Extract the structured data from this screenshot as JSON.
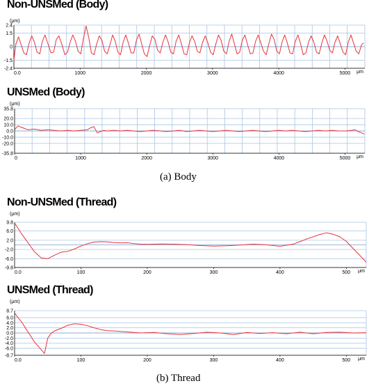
{
  "figure": {
    "caption_a": "(a) Body",
    "caption_b": "(b) Thread"
  },
  "chart_data": [
    {
      "type": "line",
      "title": "Non-UNSMed (Body)",
      "yunit": "(μm)",
      "xunit": "μm",
      "xlim": [
        0,
        5300
      ],
      "ylim": [
        -2.4,
        2.4
      ],
      "yticks": [
        "2.4",
        "1.5",
        "0",
        "-1.5",
        "-2.4"
      ],
      "ytick_values": [
        2.4,
        1.5,
        0,
        -1.5,
        -2.4
      ],
      "xticks": [
        "0.0",
        "1000",
        "2000",
        "3000",
        "4000",
        "5000"
      ],
      "xtick_values": [
        0,
        1000,
        2000,
        3000,
        4000,
        5000
      ],
      "vgrid_count": 20,
      "line_color": "#e8323a",
      "grid_color": "#a9c4e3",
      "series": [
        {
          "x": [
            0,
            30,
            70,
            110,
            150,
            190,
            230,
            270,
            310,
            350,
            390,
            430,
            470,
            520,
            560,
            600,
            640,
            680,
            730,
            770,
            810,
            850,
            890,
            930,
            970,
            1010,
            1050,
            1090,
            1130,
            1170,
            1210,
            1250,
            1290,
            1330,
            1370,
            1410,
            1450,
            1490,
            1530,
            1570,
            1610,
            1650,
            1690,
            1730,
            1770,
            1810,
            1850,
            1890,
            1930,
            1970,
            2010,
            2050,
            2090,
            2130,
            2170,
            2210,
            2250,
            2290,
            2330,
            2370,
            2410,
            2450,
            2490,
            2530,
            2570,
            2610,
            2650,
            2690,
            2730,
            2770,
            2810,
            2850,
            2890,
            2930,
            2970,
            3010,
            3050,
            3090,
            3130,
            3170,
            3210,
            3250,
            3290,
            3330,
            3370,
            3410,
            3450,
            3490,
            3530,
            3570,
            3610,
            3650,
            3690,
            3730,
            3770,
            3810,
            3850,
            3890,
            3930,
            3970,
            4010,
            4050,
            4090,
            4130,
            4170,
            4210,
            4250,
            4290,
            4330,
            4370,
            4410,
            4450,
            4490,
            4530,
            4570,
            4610,
            4650,
            4690,
            4730,
            4770,
            4810,
            4850,
            4890,
            4930,
            4970,
            5010,
            5050,
            5090,
            5130,
            5170,
            5210,
            5250,
            5280
          ],
          "y": [
            -1.5,
            0.3,
            1.1,
            0.2,
            -0.7,
            -0.9,
            0.4,
            1.2,
            0.5,
            -0.6,
            -0.8,
            0.6,
            1.3,
            0.2,
            -0.7,
            -0.6,
            0.8,
            1.2,
            0.1,
            -0.9,
            -0.6,
            0.5,
            1.3,
            0.6,
            -0.5,
            -0.8,
            0.9,
            2.3,
            1.0,
            -0.7,
            -0.9,
            0.3,
            1.2,
            0.7,
            -0.5,
            -0.8,
            0.2,
            1.3,
            0.6,
            -0.6,
            -0.9,
            0.5,
            1.3,
            0.4,
            -0.7,
            -0.7,
            0.7,
            1.4,
            0.3,
            -0.8,
            -1.1,
            0.1,
            1.2,
            0.8,
            -0.4,
            -0.7,
            0.5,
            1.3,
            0.5,
            -0.6,
            -0.8,
            0.6,
            1.3,
            0.3,
            -0.8,
            -0.9,
            0.4,
            1.2,
            0.6,
            -0.5,
            -0.7,
            0.5,
            1.2,
            0.4,
            -0.6,
            -0.9,
            0.3,
            1.3,
            0.7,
            -0.5,
            -0.8,
            0.6,
            1.4,
            0.3,
            -0.8,
            -0.6,
            0.7,
            1.3,
            0.2,
            -0.8,
            -0.7,
            0.6,
            1.3,
            0.4,
            -0.5,
            -0.9,
            0.3,
            1.4,
            0.8,
            -0.5,
            -0.8,
            0.5,
            1.3,
            0.4,
            -0.7,
            -0.8,
            0.6,
            1.3,
            0.3,
            -0.9,
            -0.7,
            0.5,
            1.2,
            0.5,
            -0.6,
            -0.8,
            0.4,
            1.3,
            0.6,
            -0.4,
            -0.7,
            0.5,
            1.2,
            0.3,
            -0.6,
            -0.9,
            0.5,
            1.3,
            0.4,
            -0.5,
            -0.8,
            0.2,
            0.4
          ]
        }
      ]
    },
    {
      "type": "line",
      "title": "UNSMed (Body)",
      "yunit": "(μm)",
      "xunit": "μm",
      "xlim": [
        0,
        5300
      ],
      "ylim": [
        -35.8,
        35.8
      ],
      "yticks": [
        "35.8",
        "20.0",
        "10.0",
        "0.0",
        "-10.0",
        "-20.0",
        "-35.8"
      ],
      "ytick_values": [
        35.8,
        20,
        10,
        0,
        -10,
        -20,
        -35.8
      ],
      "xticks": [
        "0",
        "1000",
        "2000",
        "3000",
        "4000",
        "5000"
      ],
      "xtick_values": [
        0,
        1000,
        2000,
        3000,
        4000,
        5000
      ],
      "vgrid_count": 20,
      "line_color": "#e8323a",
      "grid_color": "#a9c4e3",
      "series": [
        {
          "x": [
            0,
            50,
            100,
            150,
            200,
            300,
            400,
            500,
            600,
            700,
            800,
            900,
            1000,
            1100,
            1150,
            1200,
            1250,
            1300,
            1350,
            1400,
            1500,
            1600,
            1700,
            1800,
            1900,
            2000,
            2100,
            2200,
            2300,
            2400,
            2500,
            2600,
            2700,
            2800,
            2900,
            3000,
            3100,
            3200,
            3300,
            3400,
            3500,
            3600,
            3700,
            3800,
            3900,
            4000,
            4100,
            4200,
            4300,
            4400,
            4500,
            4600,
            4700,
            4800,
            4900,
            5000,
            5100,
            5150,
            5200,
            5250,
            5290
          ],
          "y": [
            2,
            8,
            6,
            4,
            2,
            3,
            1,
            2,
            1,
            0,
            1,
            0,
            1,
            2,
            5,
            7,
            -3,
            -1,
            1,
            0,
            1,
            0,
            1,
            0,
            -1,
            0,
            1,
            0,
            -1,
            0,
            1,
            -1,
            0,
            1,
            0,
            -1,
            0,
            1,
            0,
            -1,
            0,
            1,
            0,
            -1,
            0,
            1,
            0,
            1,
            0,
            -1,
            0,
            1,
            0,
            1,
            0,
            0,
            1,
            2,
            -1,
            -3,
            -5
          ]
        }
      ]
    },
    {
      "type": "line",
      "title": "Non-UNSMed (Thread)",
      "yunit": "(μm)",
      "xunit": "μm",
      "xlim": [
        0,
        530
      ],
      "ylim": [
        -9.8,
        9.8
      ],
      "yticks": [
        "9.8",
        "6.0",
        "2.0",
        "-2.0",
        "-6.0",
        "-9.8"
      ],
      "ytick_values": [
        9.8,
        6,
        2,
        -2,
        -6,
        -9.8
      ],
      "xticks": [
        "0.0",
        "100",
        "200",
        "300",
        "400",
        "500"
      ],
      "xtick_values": [
        0,
        100,
        200,
        300,
        400,
        500
      ],
      "vgrid_count": 0,
      "line_color": "#e8323a",
      "grid_color": "#a9c4e3",
      "series": [
        {
          "x": [
            0,
            10,
            20,
            30,
            40,
            50,
            60,
            70,
            80,
            90,
            100,
            110,
            120,
            130,
            140,
            150,
            160,
            170,
            180,
            190,
            200,
            220,
            240,
            260,
            280,
            300,
            320,
            340,
            360,
            380,
            400,
            420,
            440,
            460,
            470,
            480,
            490,
            500,
            510,
            520,
            530
          ],
          "y": [
            9.5,
            5,
            1,
            -3,
            -5.6,
            -6,
            -4.5,
            -3.2,
            -2.8,
            -1.8,
            -0.5,
            0.5,
            1.2,
            1.4,
            1.3,
            1.0,
            0.8,
            0.9,
            0.5,
            0.3,
            0.2,
            0.4,
            0.3,
            0.1,
            -0.3,
            -0.5,
            -0.4,
            -0.1,
            0.3,
            0.0,
            -0.6,
            0.3,
            2.5,
            4.5,
            5.2,
            4.6,
            3.5,
            1.5,
            -1.5,
            -4.5,
            -7.5
          ]
        }
      ]
    },
    {
      "type": "line",
      "title": "UNSMed (Thread)",
      "yunit": "(μm)",
      "xunit": "μm",
      "xlim": [
        0,
        530
      ],
      "ylim": [
        -8.7,
        8.7
      ],
      "yticks": [
        "8.7",
        "6.0",
        "4.0",
        "2.0",
        "0.0",
        "-2.0",
        "-4.0",
        "-6.0",
        "-8.7"
      ],
      "ytick_values": [
        8.7,
        6,
        4,
        2,
        0,
        -2,
        -4,
        -6,
        -8.7
      ],
      "xticks": [
        "0.0",
        "100",
        "200",
        "300",
        "400",
        "500"
      ],
      "xtick_values": [
        0,
        100,
        200,
        300,
        400,
        500
      ],
      "vgrid_count": 0,
      "line_color": "#e8323a",
      "grid_color": "#a9c4e3",
      "series": [
        {
          "x": [
            0,
            5,
            10,
            20,
            30,
            40,
            45,
            50,
            55,
            60,
            70,
            80,
            90,
            100,
            110,
            120,
            130,
            140,
            150,
            170,
            190,
            210,
            230,
            250,
            270,
            290,
            310,
            330,
            350,
            370,
            390,
            410,
            430,
            450,
            470,
            490,
            510,
            530
          ],
          "y": [
            7.8,
            6,
            4.5,
            0.5,
            -3.5,
            -6.5,
            -8,
            -2,
            -0.2,
            0.8,
            1.8,
            3.0,
            3.6,
            3.4,
            2.8,
            2.0,
            1.3,
            0.9,
            0.8,
            0.4,
            0.0,
            0.2,
            -0.3,
            -0.6,
            -0.2,
            0.3,
            0.0,
            -0.6,
            0.2,
            -0.2,
            0.1,
            -0.3,
            0.3,
            -0.3,
            0.2,
            0.3,
            0.0,
            0.1
          ]
        }
      ]
    }
  ]
}
